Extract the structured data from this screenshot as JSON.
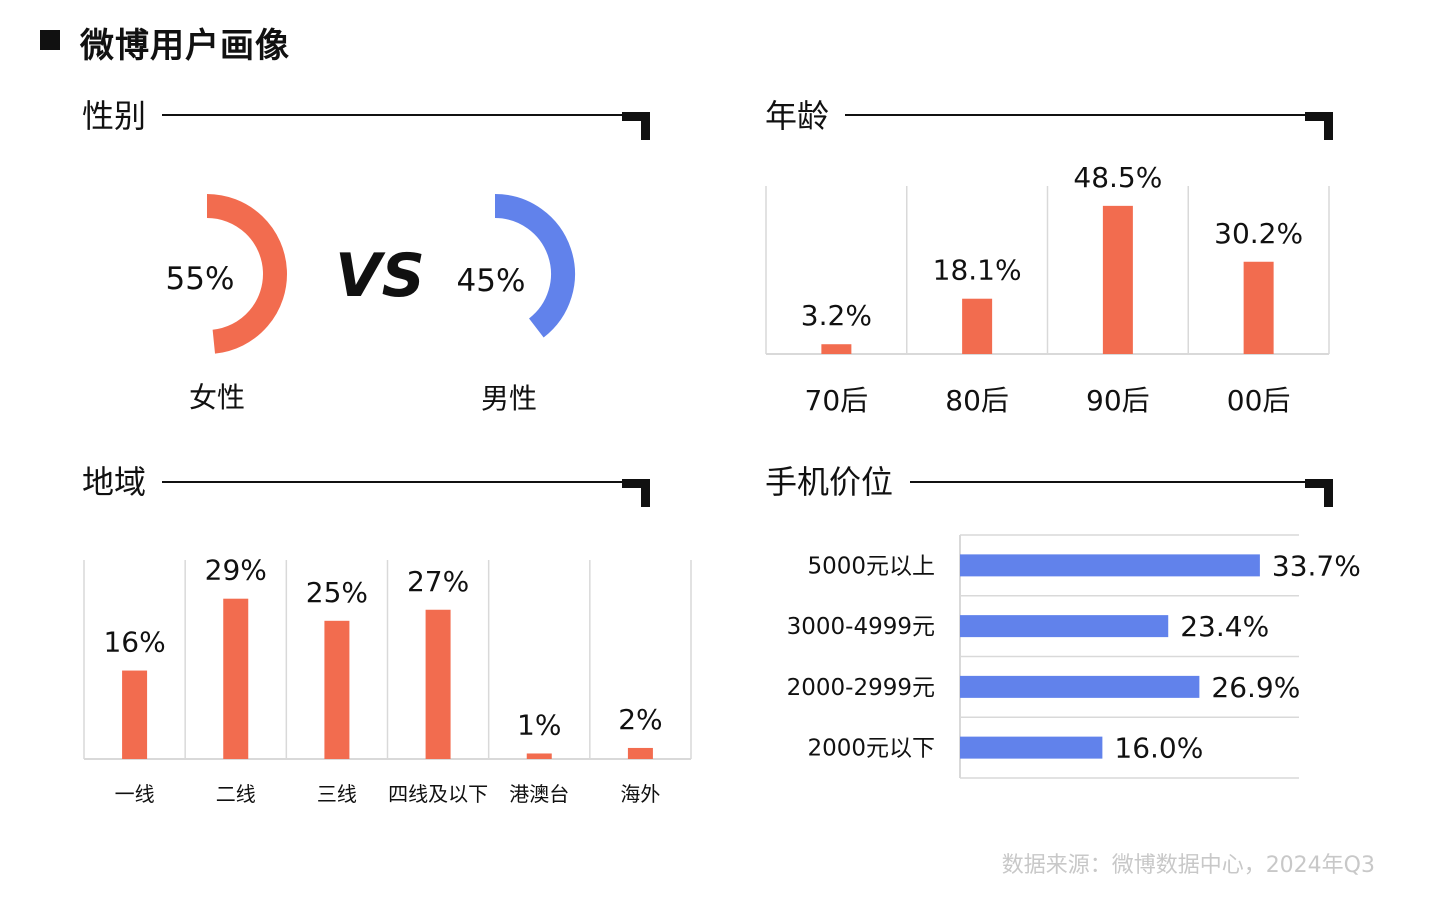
{
  "page": {
    "title": "微博用户画像",
    "source": "数据来源：微博数据中心，2024年Q3"
  },
  "colors": {
    "female": "#F26C4F",
    "male": "#6182EB",
    "bar": "#F26C4F",
    "price_bar": "#6182EB",
    "grid": "#d9d9d9"
  },
  "sections": {
    "gender": "性别",
    "age": "年龄",
    "region": "地域",
    "price": "手机价位"
  },
  "chart_data": [
    {
      "id": "gender",
      "type": "pie",
      "title": "性别",
      "vs_label": "VS",
      "slices": [
        {
          "label": "女性",
          "value": 55,
          "display": "55%",
          "color": "#F26C4F"
        },
        {
          "label": "男性",
          "value": 45,
          "display": "45%",
          "color": "#6182EB"
        }
      ]
    },
    {
      "id": "age",
      "type": "bar",
      "title": "年龄",
      "categories": [
        "70后",
        "80后",
        "90后",
        "00后"
      ],
      "values": [
        3.2,
        18.1,
        48.5,
        30.2
      ],
      "labels": [
        "3.2%",
        "18.1%",
        "48.5%",
        "30.2%"
      ],
      "ylim": [
        0,
        55
      ],
      "grid": true
    },
    {
      "id": "region",
      "type": "bar",
      "title": "地域",
      "categories": [
        "一线",
        "二线",
        "三线",
        "四线及以下",
        "港澳台",
        "海外"
      ],
      "values": [
        16,
        29,
        25,
        27,
        1,
        2
      ],
      "labels": [
        "16%",
        "29%",
        "25%",
        "27%",
        "1%",
        "2%"
      ],
      "ylim": [
        0,
        36
      ],
      "grid": true
    },
    {
      "id": "price",
      "type": "bar",
      "orientation": "horizontal",
      "title": "手机价位",
      "categories": [
        "5000元以上",
        "3000-4999元",
        "2000-2999元",
        "2000元以下"
      ],
      "values": [
        33.7,
        23.4,
        26.9,
        16.0
      ],
      "labels": [
        "33.7%",
        "23.4%",
        "26.9%",
        "16.0%"
      ],
      "xlim": [
        0,
        40
      ],
      "grid": true
    }
  ]
}
